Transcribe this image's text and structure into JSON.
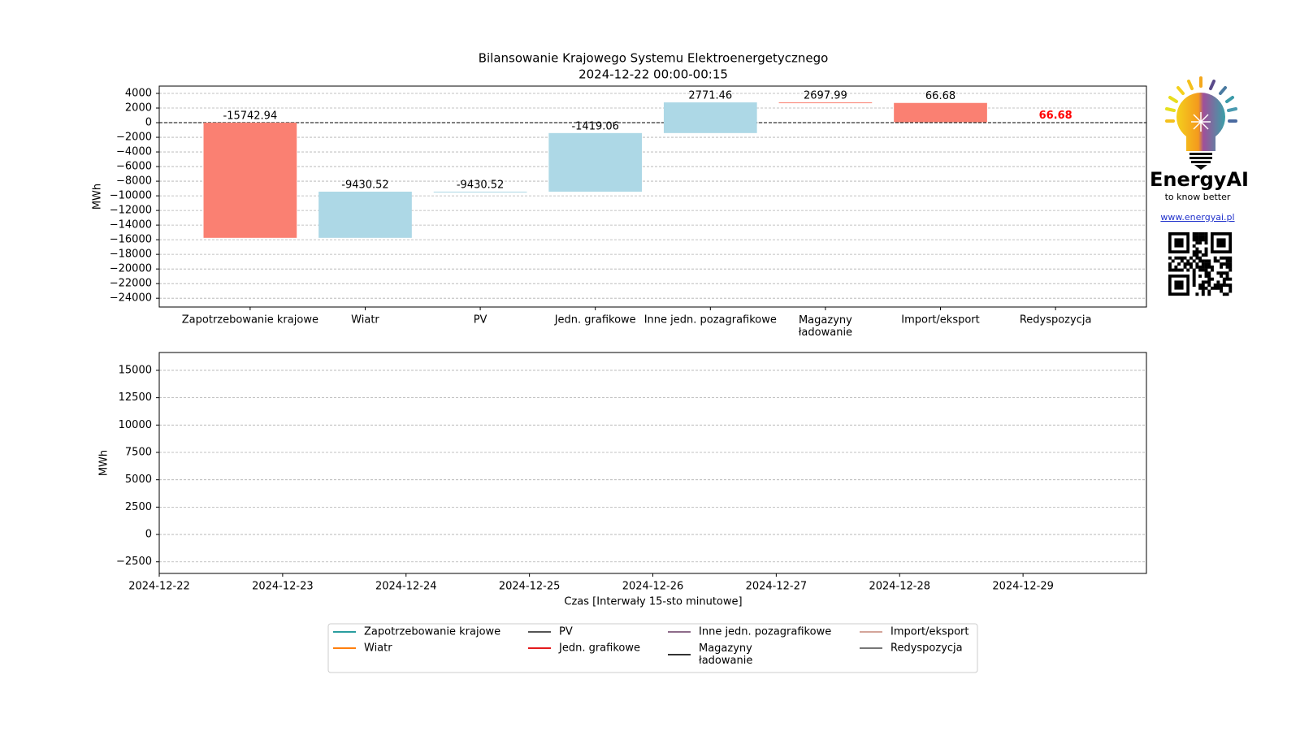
{
  "chart_data": [
    {
      "type": "waterfall",
      "title": "Bilansowanie Krajowego Systemu Elektroenergetycznego",
      "subtitle": "2024-12-22 00:00-00:15",
      "ylabel": "MWh",
      "categories": [
        "Zapotrzebowanie krajowe",
        "Wiatr",
        "PV",
        "Jedn. grafikowe",
        "Inne jedn. pozagrafikowe",
        "Magazyny\nładowanie",
        "Import/eksport",
        "Redyspozycja"
      ],
      "values": [
        -15742.94,
        -9430.52,
        -9430.52,
        -1419.06,
        2771.46,
        2697.99,
        66.68,
        66.68
      ],
      "increase_color": "#add8e6",
      "decrease_color": "#fa8072",
      "total_label_color": "#ff0000",
      "last_is_total": true,
      "zero_line": true,
      "grid": true,
      "ylim": [
        -25200,
        5000
      ],
      "yticks": [
        {
          "value": 4000,
          "label": "4000"
        },
        {
          "value": 2000,
          "label": "2000"
        },
        0,
        {
          "value": -2000,
          "label": "−2000"
        },
        {
          "value": -4000,
          "label": "−4000"
        },
        {
          "value": -6000,
          "label": "−6000"
        },
        {
          "value": -8000,
          "label": "−8000"
        },
        {
          "value": -10000,
          "label": "−10000"
        },
        {
          "value": -12000,
          "label": "−12000"
        },
        {
          "value": -14000,
          "label": "−14000"
        },
        {
          "value": -16000,
          "label": "−16000"
        },
        {
          "value": -18000,
          "label": "−18000"
        },
        {
          "value": -20000,
          "label": "−20000"
        },
        {
          "value": -22000,
          "label": "−22000"
        },
        {
          "value": -24000,
          "label": "−24000"
        }
      ]
    },
    {
      "type": "line",
      "xlabel": "Czas [Interwały 15-sto minutowe]",
      "ylabel": "MWh",
      "x": [],
      "series": [
        {
          "name": "Zapotrzebowanie krajowe",
          "color": "#2a9d9f",
          "values": []
        },
        {
          "name": "Wiatr",
          "color": "#ff7f0e",
          "values": []
        },
        {
          "name": "PV",
          "color": "#555555",
          "values": []
        },
        {
          "name": "Jedn. grafikowe",
          "color": "#e41a1c",
          "values": []
        },
        {
          "name": "Inne jedn. pozagrafikowe",
          "color": "#8e6c8a",
          "values": []
        },
        {
          "name": "Magazyny\nładowanie",
          "color": "#333333",
          "values": []
        },
        {
          "name": "Import/eksport",
          "color": "#d4a59a",
          "values": []
        },
        {
          "name": "Redyspozycja",
          "color": "#777777",
          "values": []
        }
      ],
      "xlim": [
        "2024-12-22",
        "2024-12-30"
      ],
      "xticks": [
        "2024-12-22",
        "2024-12-23",
        "2024-12-24",
        "2024-12-25",
        "2024-12-26",
        "2024-12-27",
        "2024-12-28",
        "2024-12-29"
      ],
      "ylim": [
        -3560,
        16630
      ],
      "yticks": [
        {
          "value": -2500,
          "label": "−2500"
        },
        0,
        2500,
        5000,
        7500,
        10000,
        12500,
        15000
      ],
      "grid": true,
      "legend": "bottom"
    }
  ],
  "logo": {
    "name": "EnergyAI",
    "tagline": "to know better",
    "url": "www.energyai.pl"
  }
}
